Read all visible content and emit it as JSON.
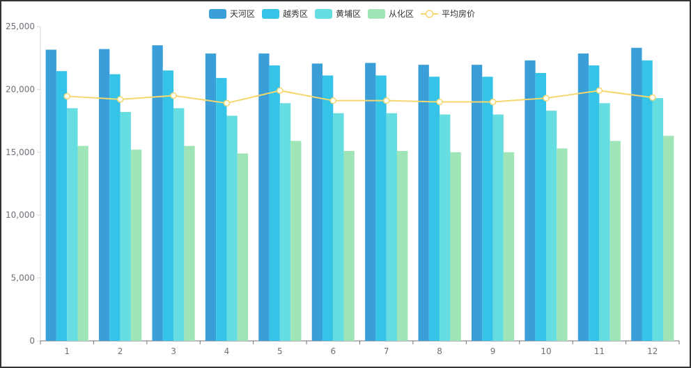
{
  "chart_data": {
    "type": "bar",
    "categories": [
      "1",
      "2",
      "3",
      "4",
      "5",
      "6",
      "7",
      "8",
      "9",
      "10",
      "11",
      "12"
    ],
    "series": [
      {
        "name": "天河区",
        "type": "bar",
        "color": "#3a9fd8",
        "values": [
          23150,
          23200,
          23500,
          22850,
          22850,
          22050,
          22100,
          21950,
          21950,
          22300,
          22850,
          23300
        ]
      },
      {
        "name": "越秀区",
        "type": "bar",
        "color": "#36c3e8",
        "values": [
          21450,
          21200,
          21500,
          20900,
          21900,
          21100,
          21100,
          21000,
          21000,
          21300,
          21900,
          22300
        ]
      },
      {
        "name": "黄埔区",
        "type": "bar",
        "color": "#66dde0",
        "values": [
          18500,
          18200,
          18500,
          17900,
          18900,
          18100,
          18100,
          18000,
          18000,
          18300,
          18900,
          19300
        ]
      },
      {
        "name": "从化区",
        "type": "bar",
        "color": "#9fe5b8",
        "values": [
          15500,
          15200,
          15500,
          14900,
          15900,
          15100,
          15100,
          15000,
          15000,
          15300,
          15900,
          16300
        ]
      },
      {
        "name": "平均房价",
        "type": "line",
        "color": "#f5d76e",
        "values": [
          19450,
          19200,
          19500,
          18900,
          19900,
          19100,
          19100,
          19000,
          19000,
          19300,
          19900,
          19350
        ]
      }
    ],
    "y_ticks": [
      "0",
      "5,000",
      "10,000",
      "15,000",
      "20,000",
      "25,000"
    ],
    "ylim": [
      0,
      25000
    ],
    "grid": false,
    "legend": "top-center"
  }
}
